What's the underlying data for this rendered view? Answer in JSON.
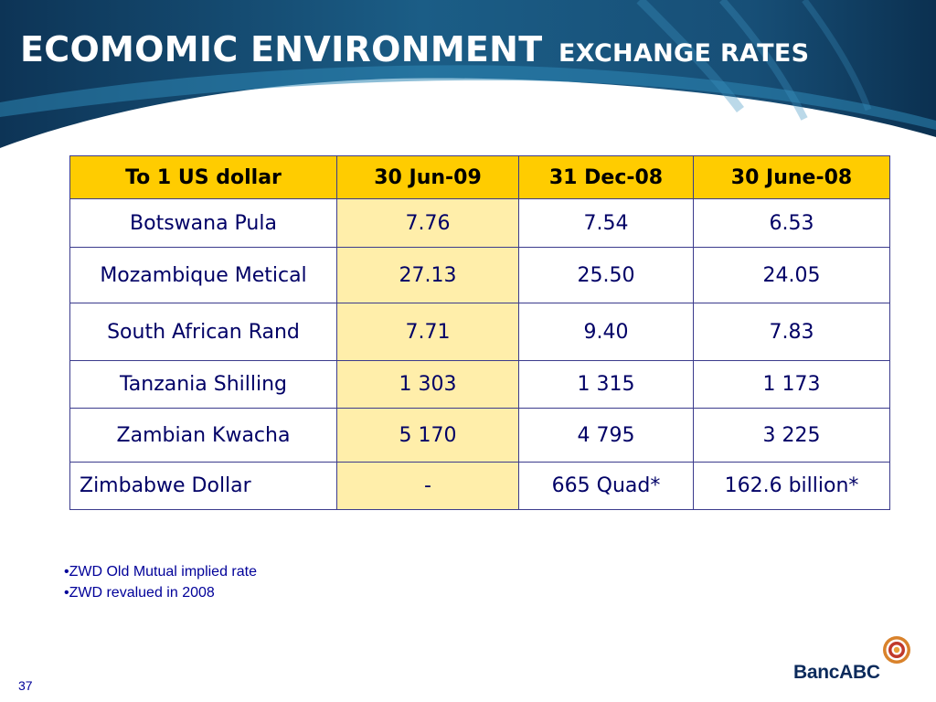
{
  "slide": {
    "title_main": "ECOMOMIC ENVIRONMENT",
    "title_sub": "EXCHANGE RATES",
    "page_number": "37"
  },
  "table": {
    "headers": [
      "To 1 US dollar",
      "30 Jun-09",
      "31 Dec-08",
      "30 June-08"
    ],
    "rows": [
      {
        "currency": "Botswana Pula",
        "jun09": "7.76",
        "dec08": "7.54",
        "jun08": "6.53"
      },
      {
        "currency": "Mozambique Metical",
        "jun09": "27.13",
        "dec08": "25.50",
        "jun08": "24.05"
      },
      {
        "currency": "South African Rand",
        "jun09": "7.71",
        "dec08": "9.40",
        "jun08": "7.83"
      },
      {
        "currency": "Tanzania Shilling",
        "jun09": "1 303",
        "dec08": "1 315",
        "jun08": "1 173"
      },
      {
        "currency": "Zambian Kwacha",
        "jun09": "5 170",
        "dec08": "4 795",
        "jun08": "3 225"
      },
      {
        "currency": "Zimbabwe Dollar",
        "jun09": "-",
        "dec08": "665 Quad*",
        "jun08": "162.6 billion*"
      }
    ]
  },
  "notes": [
    "•ZWD Old Mutual implied rate",
    "•ZWD revalued in 2008"
  ],
  "logo": {
    "text": "BancABC",
    "icon": "concentric-circles-logo-icon"
  },
  "colors": {
    "banner_dark": "#0b3a5e",
    "banner_mid": "#1f6f9a",
    "header_fill": "#ffcc00",
    "highlight_column": "#ffeeaa",
    "table_border": "#3b3b8c",
    "text_navy": "#000066"
  }
}
